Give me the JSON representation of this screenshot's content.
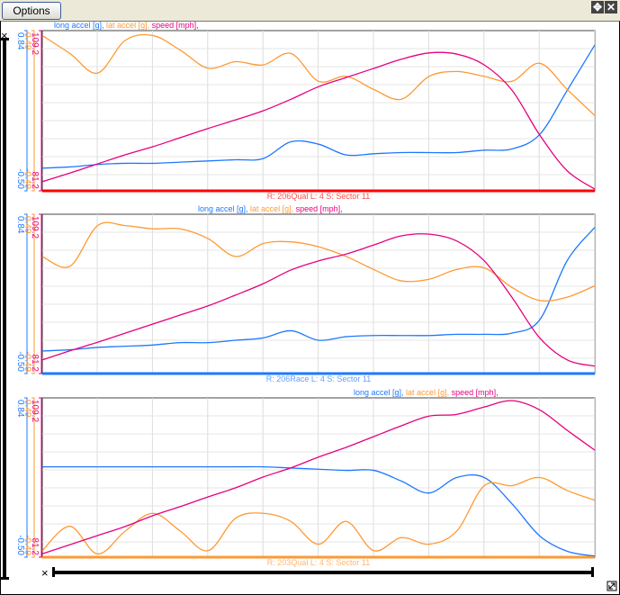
{
  "toolbar": {
    "options_label": "Options",
    "move_icon": "move-icon",
    "close_icon": "close-icon"
  },
  "colors": {
    "long": "#1e78ff",
    "lat": "#ff9933",
    "speed": "#e6007e"
  },
  "axes": {
    "long_max": "0.84",
    "long_min": "-0.50",
    "lat_max": "0.49",
    "lat_min": "-0.49",
    "speed_max": "109.2",
    "speed_min": "81.2"
  },
  "legend": {
    "long": "long accel [g],",
    "lat": "lat accel [g],",
    "speed": "speed [mph],"
  },
  "chart_data": [
    {
      "type": "line",
      "title": "R: 206Qual  L: 4  S: Sector 11",
      "x": [
        0,
        0.05,
        0.1,
        0.15,
        0.2,
        0.25,
        0.3,
        0.35,
        0.4,
        0.45,
        0.5,
        0.55,
        0.6,
        0.65,
        0.7,
        0.75,
        0.8,
        0.85,
        0.9,
        0.95,
        1
      ],
      "series": [
        {
          "name": "long accel [g]",
          "values": [
            -0.31,
            -0.3,
            -0.28,
            -0.27,
            -0.27,
            -0.26,
            -0.25,
            -0.24,
            -0.23,
            -0.09,
            -0.11,
            -0.2,
            -0.19,
            -0.18,
            -0.18,
            -0.18,
            -0.16,
            -0.15,
            -0.03,
            0.34,
            0.72
          ]
        },
        {
          "name": "lat accel [g]",
          "values": [
            0.46,
            0.35,
            0.23,
            0.43,
            0.46,
            0.37,
            0.26,
            0.3,
            0.28,
            0.35,
            0.18,
            0.21,
            0.13,
            0.07,
            0.21,
            0.24,
            0.21,
            0.18,
            0.29,
            0.13,
            -0.03
          ]
        },
        {
          "name": "speed [mph]",
          "values": [
            82.8,
            84.3,
            85.9,
            87.5,
            88.9,
            90.5,
            92.1,
            93.6,
            95.2,
            97.2,
            99.4,
            101.0,
            102.6,
            104.2,
            105.3,
            105.1,
            103.2,
            98.8,
            91.0,
            84.7,
            81.5
          ]
        }
      ]
    },
    {
      "type": "line",
      "title": "R: 206Race  L: 4  S: Sector 11",
      "x": [
        0,
        0.05,
        0.1,
        0.15,
        0.2,
        0.25,
        0.3,
        0.35,
        0.4,
        0.45,
        0.5,
        0.55,
        0.6,
        0.65,
        0.7,
        0.75,
        0.8,
        0.85,
        0.9,
        0.95,
        1
      ],
      "series": [
        {
          "name": "long accel [g]",
          "values": [
            -0.31,
            -0.3,
            -0.28,
            -0.27,
            -0.26,
            -0.24,
            -0.24,
            -0.22,
            -0.2,
            -0.14,
            -0.22,
            -0.19,
            -0.18,
            -0.18,
            -0.18,
            -0.17,
            -0.17,
            -0.16,
            -0.05,
            0.45,
            0.73
          ]
        },
        {
          "name": "lat accel [g]",
          "values": [
            0.23,
            0.17,
            0.42,
            0.42,
            0.4,
            0.4,
            0.34,
            0.23,
            0.31,
            0.32,
            0.29,
            0.23,
            0.15,
            0.08,
            0.09,
            0.15,
            0.16,
            0.04,
            -0.04,
            -0.02,
            0.05
          ]
        },
        {
          "name": "speed [mph]",
          "values": [
            83.6,
            85.2,
            86.7,
            88.3,
            89.9,
            91.5,
            93.1,
            95.0,
            97.0,
            99.4,
            101.0,
            102.2,
            103.8,
            105.4,
            105.7,
            104.5,
            101.0,
            94.6,
            87.5,
            83.6,
            82.5
          ]
        }
      ]
    },
    {
      "type": "line",
      "title": "R: 203Qual  L: 4  S: Sector 11",
      "x": [
        0,
        0.05,
        0.1,
        0.15,
        0.2,
        0.25,
        0.3,
        0.35,
        0.4,
        0.45,
        0.5,
        0.55,
        0.6,
        0.65,
        0.7,
        0.75,
        0.8,
        0.85,
        0.9,
        0.95,
        1
      ],
      "series": [
        {
          "name": "long accel [g]",
          "values": [
            0.26,
            0.26,
            0.26,
            0.26,
            0.26,
            0.26,
            0.26,
            0.26,
            0.26,
            0.25,
            0.24,
            0.23,
            0.23,
            0.14,
            0.04,
            0.17,
            0.17,
            -0.05,
            -0.32,
            -0.45,
            -0.49
          ]
        },
        {
          "name": "lat accel [g]",
          "values": [
            -0.45,
            -0.3,
            -0.47,
            -0.33,
            -0.22,
            -0.33,
            -0.45,
            -0.25,
            -0.22,
            -0.27,
            -0.41,
            -0.27,
            -0.45,
            -0.37,
            -0.41,
            -0.33,
            -0.05,
            -0.05,
            0.0,
            -0.08,
            -0.14
          ]
        },
        {
          "name": "speed [mph]",
          "values": [
            81.8,
            83.4,
            85.0,
            86.6,
            88.5,
            90.1,
            91.8,
            93.4,
            95.3,
            96.9,
            98.8,
            100.5,
            102.4,
            104.3,
            106.0,
            106.3,
            107.6,
            108.7,
            107.1,
            103.5,
            100.0
          ]
        }
      ]
    }
  ]
}
